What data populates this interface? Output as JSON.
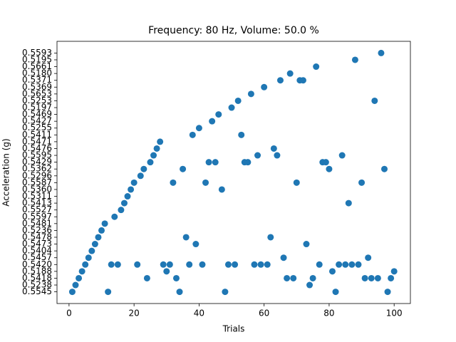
{
  "chart_data": {
    "type": "scatter",
    "title": "Frequency: 80 Hz, Volume: 50.0 %",
    "x_label": "Trials",
    "y_label": "Acceleration (g)",
    "xlim": [
      -3.7,
      105
    ],
    "xticks": [
      0,
      20,
      40,
      60,
      80,
      100
    ],
    "y_categories": [
      "0.5545",
      "0.5238",
      "0.5418",
      "0.5188",
      "0.5420",
      "0.5457",
      "0.5404",
      "0.5473",
      "0.5478",
      "0.5236",
      "0.5481",
      "0.5597",
      "0.5527",
      "0.5413",
      "0.5311",
      "0.5360",
      "0.5587",
      "0.5296",
      "0.5362",
      "0.5429",
      "0.5595",
      "0.5476",
      "0.5471",
      "0.5411",
      "0.5255",
      "0.5427",
      "0.5469",
      "0.5197",
      "0.5253",
      "0.5653",
      "0.5369",
      "0.5371",
      "0.5180",
      "0.5661",
      "0.5195",
      "0.5593"
    ],
    "series": [
      {
        "color": "#1f77b4",
        "x": [
          1,
          2,
          3,
          4,
          5,
          6,
          7,
          8,
          9,
          10,
          11,
          12,
          13,
          14,
          15,
          16,
          17,
          18,
          19,
          20,
          21,
          22,
          23,
          24,
          25,
          26,
          27,
          28,
          29,
          30,
          31,
          32,
          33,
          34,
          35,
          36,
          37,
          38,
          39,
          40,
          41,
          42,
          43,
          44,
          45,
          46,
          47,
          48,
          49,
          50,
          51,
          52,
          53,
          54,
          55,
          56,
          57,
          58,
          59,
          60,
          61,
          62,
          63,
          64,
          65,
          66,
          67,
          68,
          69,
          70,
          71,
          72,
          73,
          74,
          75,
          76,
          77,
          78,
          79,
          80,
          81,
          82,
          83,
          84,
          85,
          86,
          87,
          88,
          89,
          90,
          91,
          92,
          93,
          94,
          95,
          96,
          97,
          98,
          99,
          100
        ],
        "y": [
          "0.5545",
          "0.5238",
          "0.5418",
          "0.5188",
          "0.5420",
          "0.5457",
          "0.5404",
          "0.5473",
          "0.5478",
          "0.5236",
          "0.5481",
          "0.5545",
          "0.5420",
          "0.5597",
          "0.5420",
          "0.5527",
          "0.5413",
          "0.5311",
          "0.5360",
          "0.5587",
          "0.5420",
          "0.5296",
          "0.5362",
          "0.5418",
          "0.5429",
          "0.5595",
          "0.5476",
          "0.5471",
          "0.5420",
          "0.5188",
          "0.5420",
          "0.5587",
          "0.5418",
          "0.5545",
          "0.5362",
          "0.5478",
          "0.5420",
          "0.5411",
          "0.5473",
          "0.5255",
          "0.5420",
          "0.5587",
          "0.5429",
          "0.5427",
          "0.5429",
          "0.5469",
          "0.5360",
          "0.5545",
          "0.5420",
          "0.5197",
          "0.5420",
          "0.5253",
          "0.5411",
          "0.5429",
          "0.5429",
          "0.5653",
          "0.5420",
          "0.5595",
          "0.5420",
          "0.5369",
          "0.5420",
          "0.5478",
          "0.5476",
          "0.5595",
          "0.5371",
          "0.5457",
          "0.5418",
          "0.5180",
          "0.5418",
          "0.5587",
          "0.5371",
          "0.5371",
          "0.5473",
          "0.5238",
          "0.5418",
          "0.5661",
          "0.5420",
          "0.5429",
          "0.5429",
          "0.5362",
          "0.5188",
          "0.5545",
          "0.5420",
          "0.5595",
          "0.5420",
          "0.5413",
          "0.5420",
          "0.5195",
          "0.5420",
          "0.5587",
          "0.5418",
          "0.5457",
          "0.5418",
          "0.5253",
          "0.5418",
          "0.5593",
          "0.5362",
          "0.5545",
          "0.5418",
          "0.5188"
        ]
      }
    ]
  }
}
